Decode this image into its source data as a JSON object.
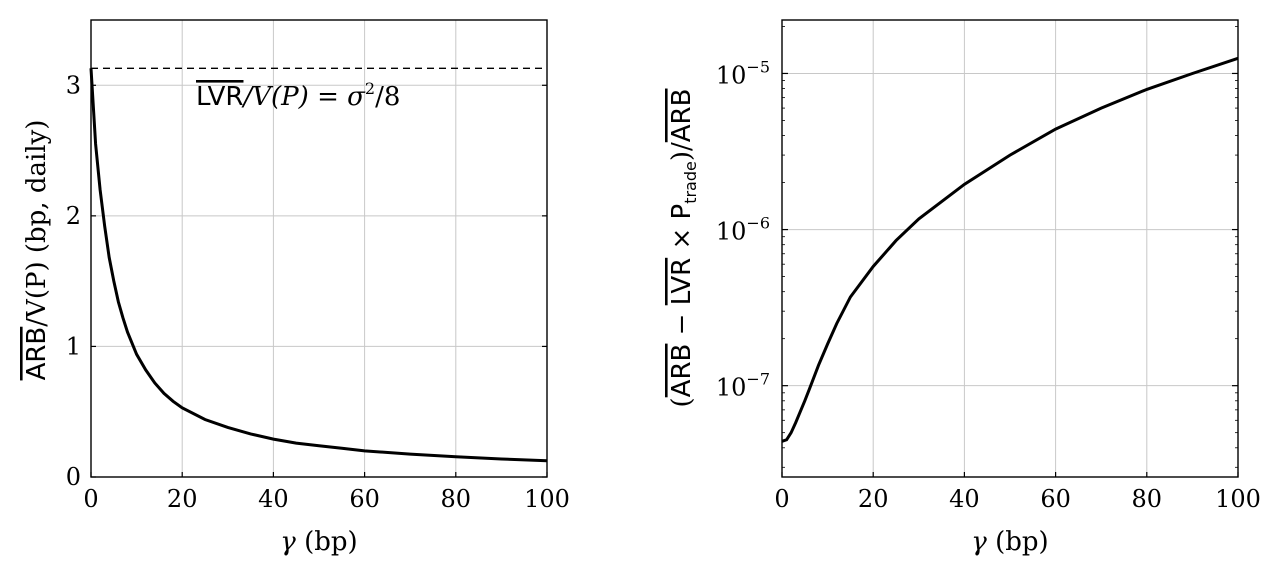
{
  "chart_data": [
    {
      "type": "line",
      "x": [
        0,
        1,
        2,
        3,
        4,
        5,
        6,
        7,
        8,
        10,
        12,
        14,
        16,
        18,
        20,
        25,
        30,
        35,
        40,
        45,
        50,
        55,
        60,
        70,
        80,
        90,
        100
      ],
      "series": [
        {
          "values": [
            3.13,
            2.55,
            2.2,
            1.92,
            1.68,
            1.5,
            1.34,
            1.22,
            1.11,
            0.94,
            0.82,
            0.72,
            0.64,
            0.58,
            0.53,
            0.44,
            0.38,
            0.33,
            0.29,
            0.26,
            0.24,
            0.22,
            0.2,
            0.175,
            0.155,
            0.138,
            0.125
          ],
          "color": "#000000"
        }
      ],
      "reference_line": {
        "value": 3.13,
        "style": "dashed",
        "label": "LVR/V(P) = σ²/8"
      },
      "annotation": {
        "lvr": "LVR",
        "eq": "/V(P) = σ",
        "sq": "2",
        "tail": "/8"
      },
      "xlabel": {
        "var": "γ",
        "unit": " (bp)"
      },
      "ylabel": {
        "arb": "ARB",
        "rest": "/V(P) (bp, daily)"
      },
      "xlim": [
        0,
        100
      ],
      "ylim": [
        0,
        3.5
      ],
      "xticks": [
        "0",
        "20",
        "40",
        "60",
        "80",
        "100"
      ],
      "yticks": [
        "0",
        "1",
        "2",
        "3"
      ],
      "grid": true
    },
    {
      "type": "line",
      "log_y": true,
      "x": [
        0,
        1,
        2,
        3,
        4,
        5,
        6,
        8,
        10,
        12,
        15,
        20,
        25,
        30,
        40,
        50,
        60,
        70,
        80,
        90,
        100
      ],
      "series": [
        {
          "values": [
            4.4e-08,
            4.5e-08,
            5e-08,
            5.8e-08,
            6.8e-08,
            8e-08,
            9.5e-08,
            1.35e-07,
            1.85e-07,
            2.5e-07,
            3.7e-07,
            5.8e-07,
            8.5e-07,
            1.17e-06,
            1.95e-06,
            3e-06,
            4.4e-06,
            6e-06,
            7.9e-06,
            1e-05,
            1.25e-05
          ],
          "color": "#000000"
        }
      ],
      "xlabel": {
        "var": "γ",
        "unit": " (bp)"
      },
      "ylabel": {
        "open": "(",
        "arb": "ARB",
        "minus": " − ",
        "lvr": "LVR",
        "times": " × P",
        "sub": "trade",
        "close": ")/",
        "arb2": "ARB"
      },
      "xlim": [
        0,
        100
      ],
      "ylim": [
        2.6e-08,
        2.2e-05
      ],
      "xticks": [
        "0",
        "20",
        "40",
        "60",
        "80",
        "100"
      ],
      "yticks": [
        {
          "base": "10",
          "exp": "−7"
        },
        {
          "base": "10",
          "exp": "−6"
        },
        {
          "base": "10",
          "exp": "−5"
        }
      ],
      "grid": true
    }
  ]
}
